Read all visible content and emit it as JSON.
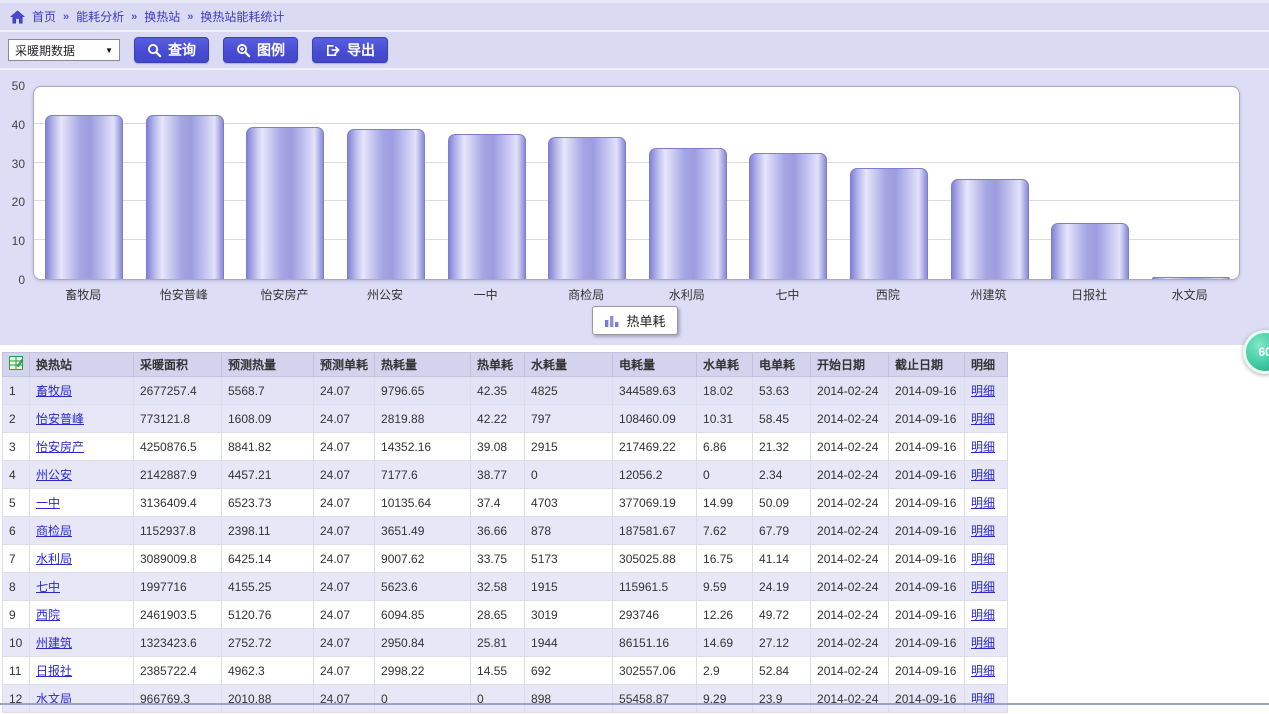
{
  "breadcrumb": {
    "separator": "»",
    "items": [
      {
        "label": "首页"
      },
      {
        "label": "能耗分析"
      },
      {
        "label": "换热站"
      },
      {
        "label": "换热站能耗统计"
      }
    ]
  },
  "toolbar": {
    "period_select": {
      "value": "采暖期数据",
      "arrow": "▼"
    },
    "query_label": "查询",
    "legend_label": "图例",
    "export_label": "导出"
  },
  "chart_data": {
    "type": "bar",
    "title": "",
    "series_name": "热单耗",
    "categories": [
      "畜牧局",
      "怡安普峰",
      "怡安房产",
      "州公安",
      "一中",
      "商检局",
      "水利局",
      "七中",
      "西院",
      "州建筑",
      "日报社",
      "水文局"
    ],
    "values": [
      42.35,
      42.22,
      39.08,
      38.77,
      37.4,
      36.66,
      33.75,
      32.58,
      28.65,
      25.81,
      14.55,
      0
    ],
    "xlabel": "",
    "ylabel": "",
    "ylim": [
      0,
      50
    ],
    "yticks": [
      0,
      10,
      20,
      30,
      40,
      50
    ],
    "grid": true,
    "legend_position": "bottom-center",
    "bar_color": "#9a9ae0"
  },
  "floating_badge": {
    "label": "60",
    "color": "#2fb894"
  },
  "table": {
    "columns": [
      "换热站",
      "采暖面积",
      "预测热量",
      "预测单耗",
      "热耗量",
      "热单耗",
      "水耗量",
      "电耗量",
      "水单耗",
      "电单耗",
      "开始日期",
      "截止日期",
      "明细"
    ],
    "detail_label": "明细",
    "rows": [
      {
        "station": "畜牧局",
        "values": [
          "2677257.4",
          "5568.7",
          "24.07",
          "9796.65",
          "42.35",
          "4825",
          "344589.63",
          "18.02",
          "53.63",
          "2014-02-24",
          "2014-09-16"
        ],
        "detail": "明细"
      },
      {
        "station": "怡安普峰",
        "values": [
          "773121.8",
          "1608.09",
          "24.07",
          "2819.88",
          "42.22",
          "797",
          "108460.09",
          "10.31",
          "58.45",
          "2014-02-24",
          "2014-09-16"
        ],
        "detail": "明细"
      },
      {
        "station": "怡安房产",
        "values": [
          "4250876.5",
          "8841.82",
          "24.07",
          "14352.16",
          "39.08",
          "2915",
          "217469.22",
          "6.86",
          "21.32",
          "2014-02-24",
          "2014-09-16"
        ],
        "detail": "明细"
      },
      {
        "station": "州公安",
        "values": [
          "2142887.9",
          "4457.21",
          "24.07",
          "7177.6",
          "38.77",
          "0",
          "12056.2",
          "0",
          "2.34",
          "2014-02-24",
          "2014-09-16"
        ],
        "detail": "明细"
      },
      {
        "station": "一中",
        "values": [
          "3136409.4",
          "6523.73",
          "24.07",
          "10135.64",
          "37.4",
          "4703",
          "377069.19",
          "14.99",
          "50.09",
          "2014-02-24",
          "2014-09-16"
        ],
        "detail": "明细"
      },
      {
        "station": "商检局",
        "values": [
          "1152937.8",
          "2398.11",
          "24.07",
          "3651.49",
          "36.66",
          "878",
          "187581.67",
          "7.62",
          "67.79",
          "2014-02-24",
          "2014-09-16"
        ],
        "detail": "明细"
      },
      {
        "station": "水利局",
        "values": [
          "3089009.8",
          "6425.14",
          "24.07",
          "9007.62",
          "33.75",
          "5173",
          "305025.88",
          "16.75",
          "41.14",
          "2014-02-24",
          "2014-09-16"
        ],
        "detail": "明细"
      },
      {
        "station": "七中",
        "values": [
          "1997716",
          "4155.25",
          "24.07",
          "5623.6",
          "32.58",
          "1915",
          "115961.5",
          "9.59",
          "24.19",
          "2014-02-24",
          "2014-09-16"
        ],
        "detail": "明细"
      },
      {
        "station": "西院",
        "values": [
          "2461903.5",
          "5120.76",
          "24.07",
          "6094.85",
          "28.65",
          "3019",
          "293746",
          "12.26",
          "49.72",
          "2014-02-24",
          "2014-09-16"
        ],
        "detail": "明细"
      },
      {
        "station": "州建筑",
        "values": [
          "1323423.6",
          "2752.72",
          "24.07",
          "2950.84",
          "25.81",
          "1944",
          "86151.16",
          "14.69",
          "27.12",
          "2014-02-24",
          "2014-09-16"
        ],
        "detail": "明细"
      },
      {
        "station": "日报社",
        "values": [
          "2385722.4",
          "4962.3",
          "24.07",
          "2998.22",
          "14.55",
          "692",
          "302557.06",
          "2.9",
          "52.84",
          "2014-02-24",
          "2014-09-16"
        ],
        "detail": "明细"
      },
      {
        "station": "水文局",
        "values": [
          "966769.3",
          "2010.88",
          "24.07",
          "0",
          "0",
          "898",
          "55458.87",
          "9.29",
          "23.9",
          "2014-02-24",
          "2014-09-16"
        ],
        "detail": "明细"
      }
    ]
  }
}
